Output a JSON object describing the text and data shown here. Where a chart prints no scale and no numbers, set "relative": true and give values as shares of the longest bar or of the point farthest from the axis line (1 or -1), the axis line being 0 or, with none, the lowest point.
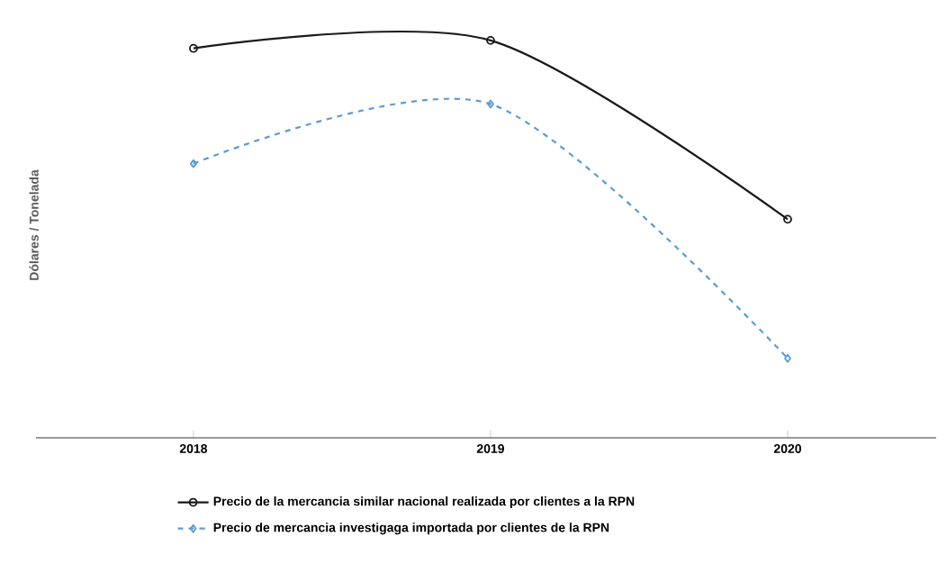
{
  "chart_data": {
    "type": "line",
    "relative": true,
    "ylabel": "Dólares / Tonelada",
    "categories": [
      "2018",
      "2019",
      "2020"
    ],
    "tick_labels": "x",
    "legend": "bottom",
    "grid": false,
    "series": [
      {
        "name": "Precio de la mercancia similar nacional realizada por clientes a la RPN",
        "color": "#1a1a1a",
        "marker": "circle",
        "line_style": "solid",
        "values": [
          0.98,
          1,
          0.55
        ]
      },
      {
        "name": "Precio de mercancia investigaga importada por clientes de la RPN",
        "color": "#5b9bd5",
        "marker": "diamond",
        "line_style": "dashed",
        "values": [
          0.69,
          0.84,
          0.2
        ]
      }
    ]
  }
}
